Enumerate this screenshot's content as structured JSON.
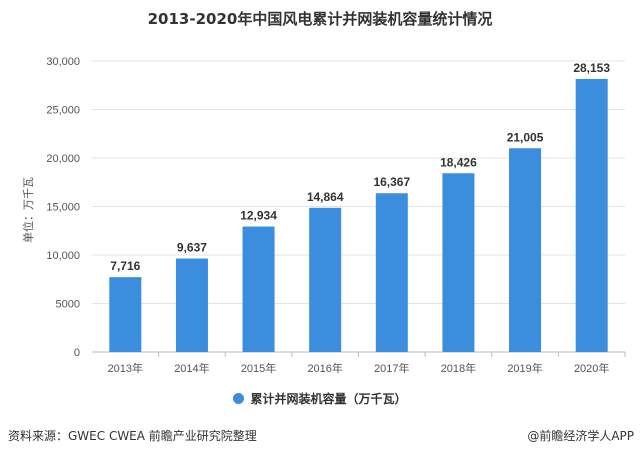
{
  "chart_data": {
    "type": "bar",
    "title": "2013-2020年中国风电累计并网装机容量统计情况",
    "ylabel": "单位：万千瓦",
    "xlabel": "",
    "categories": [
      "2013年",
      "2014年",
      "2015年",
      "2016年",
      "2017年",
      "2018年",
      "2019年",
      "2020年"
    ],
    "series": [
      {
        "name": "累计并网装机容量（万千瓦）",
        "values": [
          7716,
          9637,
          12934,
          14864,
          16367,
          18426,
          21005,
          28153
        ],
        "color": "#3b8ddd"
      }
    ],
    "data_labels": [
      "7,716",
      "9,637",
      "12,934",
      "14,864",
      "16,367",
      "18,426",
      "21,005",
      "28,153"
    ],
    "yticks": [
      0,
      5000,
      10000,
      15000,
      20000,
      25000,
      30000
    ],
    "ytick_labels": [
      "0",
      "5000",
      "10,000",
      "15,000",
      "20,000",
      "25,000",
      "30,000"
    ],
    "ylim": [
      0,
      30000
    ],
    "grid": true,
    "legend_position": "bottom"
  },
  "footer": {
    "source": "资料来源：GWEC CWEA 前瞻产业研究院整理",
    "credit": "@前瞻经济学人APP"
  }
}
